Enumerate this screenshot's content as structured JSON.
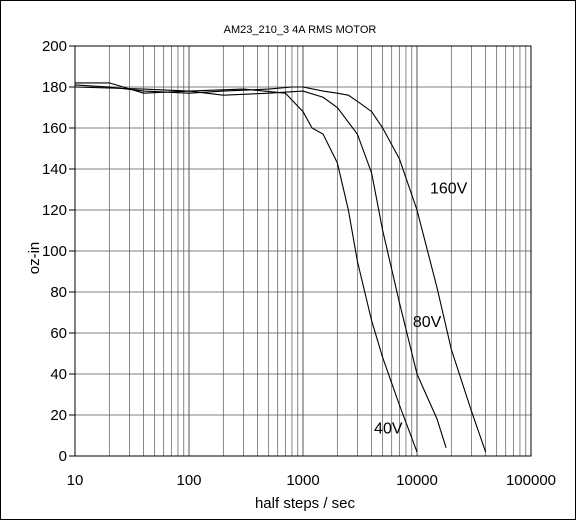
{
  "chart_data": {
    "type": "line",
    "title": "AM23_210_3 4A RMS MOTOR",
    "xlabel": "half steps / sec",
    "ylabel": "oz-in",
    "xscale": "log",
    "xlim": [
      10,
      100000
    ],
    "ylim": [
      0,
      200
    ],
    "grid": true,
    "x_tick_labels": [
      "10",
      "100",
      "1000",
      "10000",
      "100000"
    ],
    "x_tick_values": [
      10,
      100,
      1000,
      10000,
      100000
    ],
    "y_tick_values": [
      0,
      20,
      40,
      60,
      80,
      100,
      120,
      140,
      160,
      180,
      200
    ],
    "y_tick_labels": [
      "0",
      "20",
      "40",
      "60",
      "80",
      "100",
      "120",
      "140",
      "160",
      "180",
      "200"
    ],
    "series": [
      {
        "name": "40V",
        "x": [
          10,
          20,
          40,
          100,
          300,
          700,
          1000,
          1200,
          1500,
          2000,
          2500,
          3000,
          4000,
          5000,
          7000,
          10000
        ],
        "y": [
          182,
          182,
          177,
          178,
          179,
          177,
          168,
          160,
          157,
          143,
          120,
          95,
          66,
          48,
          25,
          2
        ]
      },
      {
        "name": "80V",
        "x": [
          10,
          40,
          100,
          200,
          500,
          1000,
          1500,
          2000,
          3000,
          4000,
          5000,
          7000,
          10000,
          15000,
          18000
        ],
        "y": [
          180,
          179,
          178,
          176,
          177,
          178,
          175,
          170,
          157,
          138,
          110,
          75,
          40,
          18,
          4
        ]
      },
      {
        "name": "160V",
        "x": [
          10,
          20,
          40,
          100,
          200,
          500,
          800,
          1000,
          1500,
          2000,
          2500,
          3000,
          4000,
          5000,
          7000,
          10000,
          15000,
          20000,
          30000,
          40000
        ],
        "y": [
          181,
          180,
          178,
          177,
          178,
          179,
          180,
          180,
          178,
          177,
          176,
          173,
          168,
          160,
          145,
          120,
          82,
          52,
          22,
          2
        ]
      }
    ]
  }
}
